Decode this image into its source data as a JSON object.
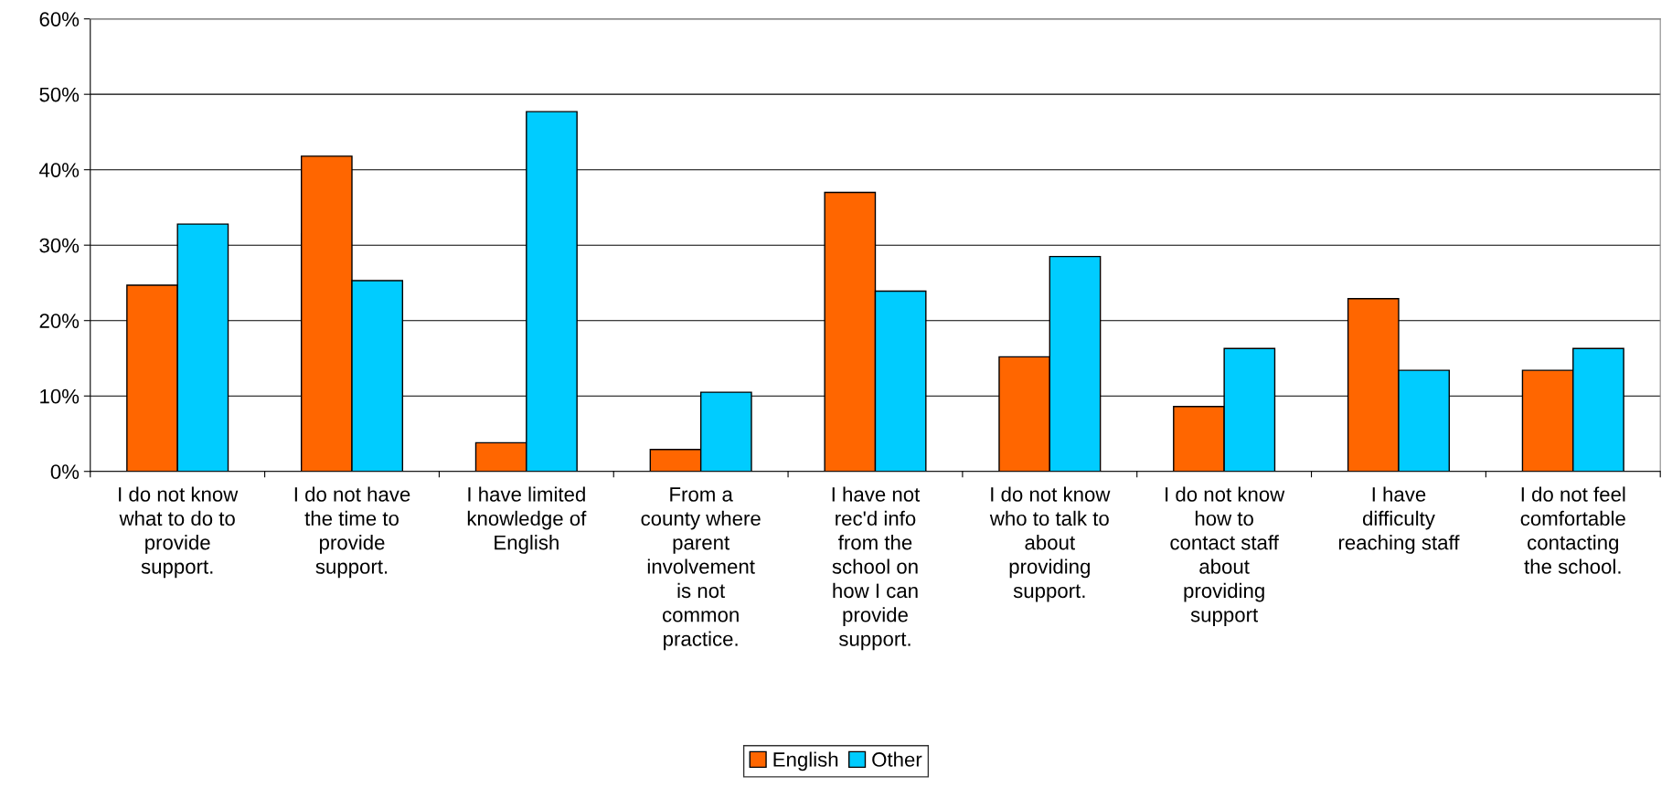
{
  "chart_data": {
    "type": "bar",
    "categories": [
      "I do not know\nwhat to do to\nprovide\nsupport.",
      "I do not have\nthe time to\nprovide\nsupport.",
      "I have limited\nknowledge of\nEnglish",
      "From a\ncounty where\nparent\ninvolvement\nis not\ncommon\npractice.",
      "I have not\nrec'd info\nfrom the\nschool on\nhow I can\nprovide\nsupport.",
      "I do not know\nwho to talk to\nabout\nproviding\nsupport.",
      "I do not know\nhow to\ncontact staff\nabout\nproviding\nsupport",
      "I have\ndifficulty\nreaching staff",
      "I do not feel\ncomfortable\ncontacting\nthe school."
    ],
    "series": [
      {
        "name": "English",
        "color": "#ff6600",
        "values": [
          24.7,
          41.8,
          3.8,
          2.9,
          37.0,
          15.2,
          8.6,
          22.9,
          13.4
        ]
      },
      {
        "name": "Other",
        "color": "#00ccff",
        "values": [
          32.8,
          25.3,
          47.7,
          10.5,
          23.9,
          28.5,
          16.3,
          13.4,
          16.3
        ]
      }
    ],
    "ylim": [
      0,
      60
    ],
    "yticks": [
      {
        "value": 0,
        "label": "0%"
      },
      {
        "value": 10,
        "label": "10%"
      },
      {
        "value": 20,
        "label": "20%"
      },
      {
        "value": 30,
        "label": "30%"
      },
      {
        "value": 40,
        "label": "40%"
      },
      {
        "value": 50,
        "label": "50%"
      },
      {
        "value": 60,
        "label": "60%"
      }
    ],
    "grid": "y",
    "legend": "bottom"
  }
}
